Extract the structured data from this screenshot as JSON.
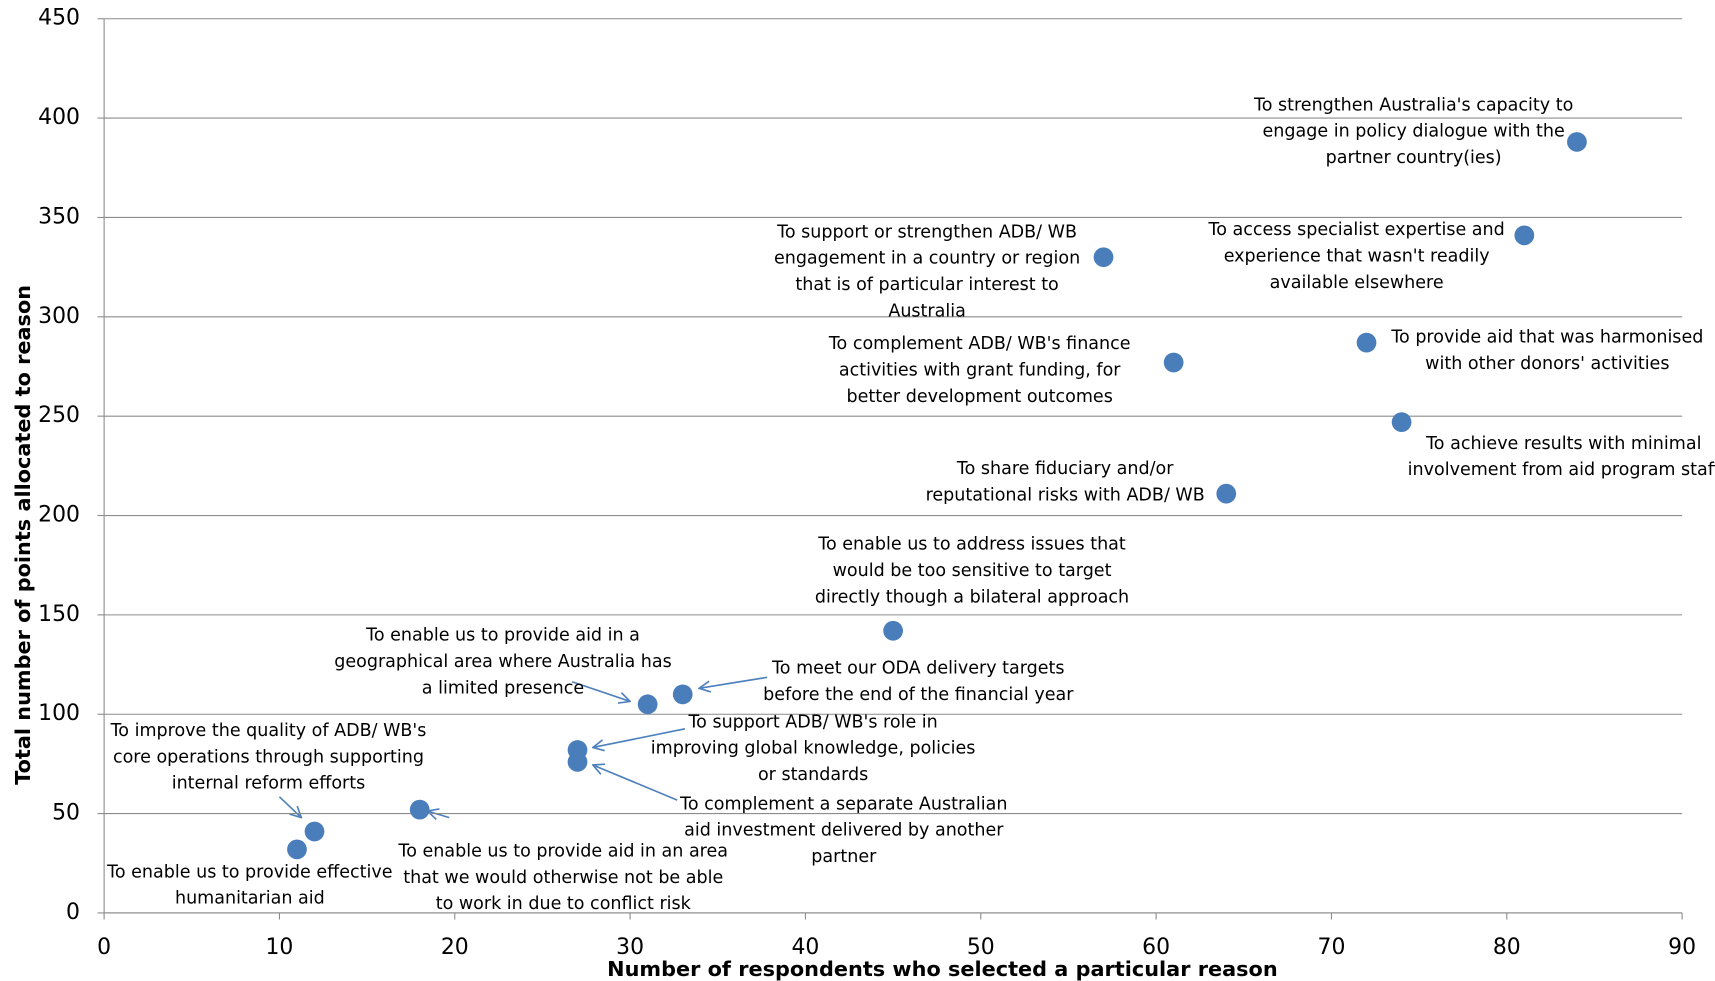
{
  "chart_data": {
    "type": "scatter",
    "x_label": "Number of respondents who selected a particular reason",
    "y_label": "Total number of points allocated to reason",
    "x": [
      84,
      81,
      57,
      72,
      61,
      74,
      64,
      45,
      33,
      31,
      27,
      27,
      18,
      12,
      11
    ],
    "values": [
      388,
      341,
      330,
      287,
      277,
      247,
      211,
      142,
      110,
      105,
      82,
      76,
      52,
      41,
      32
    ],
    "point_labels": [
      [
        "To strengthen Australia's capacity to",
        "engage in policy dialogue with the",
        "partner country(ies)"
      ],
      [
        "To access specialist expertise and",
        "experience that wasn't readily",
        "available elsewhere"
      ],
      [
        "To support or strengthen ADB/ WB",
        "engagement in a country or region",
        "that is of particular interest to",
        "Australia"
      ],
      [
        "To provide aid that was harmonised",
        "with other donors' activities"
      ],
      [
        "To complement ADB/ WB's finance",
        "activities with grant funding, for",
        "better development outcomes"
      ],
      [
        "To achieve results with minimal",
        "involvement from aid program staff"
      ],
      [
        "To share fiduciary and/or",
        "reputational risks with ADB/ WB"
      ],
      [
        "To enable us to address issues that",
        "would be too sensitive to target",
        "directly though a bilateral approach"
      ],
      [
        "To meet our ODA delivery targets",
        "before the end of the financial year"
      ],
      [
        "To enable us to provide aid in a",
        "geographical area where Australia has",
        "a limited presence"
      ],
      [
        "To support ADB/ WB's role in",
        "improving global knowledge, policies",
        "or standards"
      ],
      [
        "To complement a separate Australian",
        "aid investment delivered by another",
        "partner"
      ],
      [
        "To enable us to provide aid in an area",
        "that we would otherwise not be able",
        "to work in due to conflict risk"
      ],
      [
        "To improve the quality of ADB/ WB's",
        "core operations through supporting",
        "internal reform efforts"
      ],
      [
        "To enable us to provide effective",
        "humanitarian aid"
      ]
    ],
    "color": "#4a7ebb",
    "xlim": [
      0,
      90
    ],
    "xticks": [
      0,
      10,
      20,
      30,
      40,
      50,
      60,
      70,
      80,
      90
    ],
    "ylim": [
      0,
      450
    ],
    "yticks": [
      0,
      50,
      100,
      150,
      200,
      250,
      300,
      350,
      400,
      450
    ],
    "grid": true
  }
}
